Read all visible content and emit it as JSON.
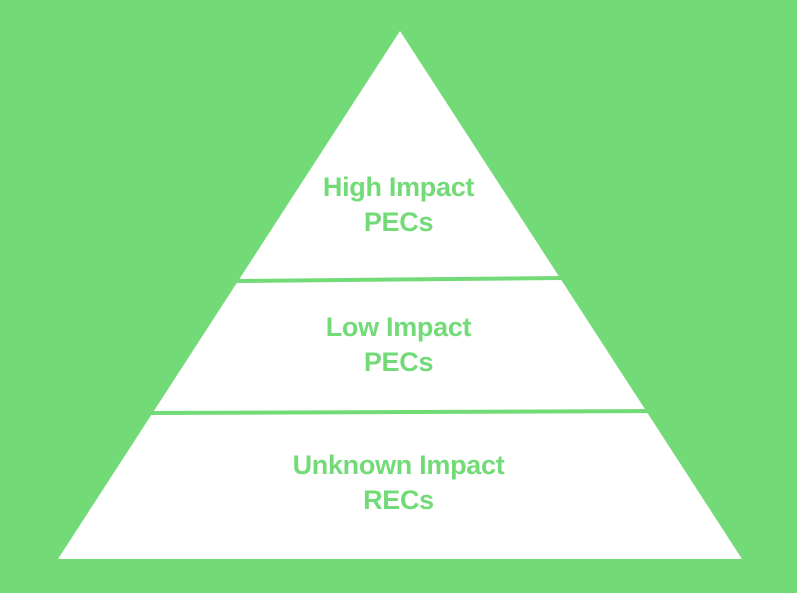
{
  "colors": {
    "background": "#72DB78",
    "pyramid_fill": "#FFFFFF",
    "text": "#72DB78",
    "divider": "#72DB78"
  },
  "pyramid": {
    "tiers": [
      {
        "line1": "High Impact",
        "line2": "PECs"
      },
      {
        "line1": "Low Impact",
        "line2": "PECs"
      },
      {
        "line1": "Unknown Impact",
        "line2": "RECs"
      }
    ]
  }
}
